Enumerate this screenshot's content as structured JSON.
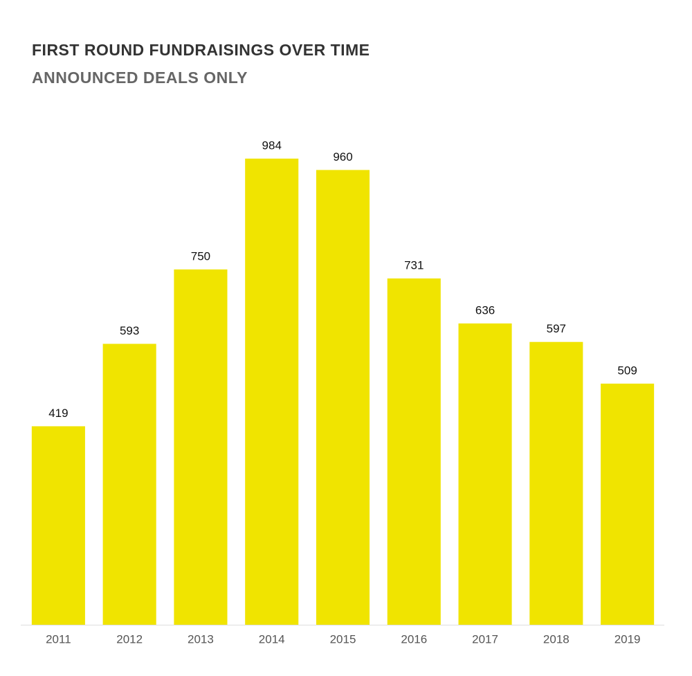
{
  "chart_data": {
    "type": "bar",
    "title": "FIRST ROUND FUNDRAISINGS OVER TIME",
    "subtitle": "ANNOUNCED DEALS ONLY",
    "categories": [
      "2011",
      "2012",
      "2013",
      "2014",
      "2015",
      "2016",
      "2017",
      "2018",
      "2019"
    ],
    "values": [
      419,
      593,
      750,
      984,
      960,
      731,
      636,
      597,
      509
    ],
    "color": "#f0e400"
  }
}
